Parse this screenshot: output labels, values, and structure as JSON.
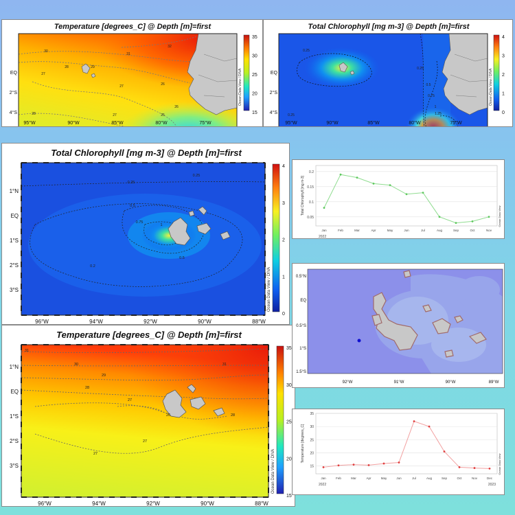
{
  "colors": {
    "chl_line": "#8fdc8f",
    "chl_point": "#5ec85e",
    "temp_line": "#f2a0a0",
    "temp_point": "#e04040",
    "land": "#c8c8c8",
    "land_stroke": "#555555",
    "map_frame": "#222222"
  },
  "chart_data": [
    {
      "type": "heatmap",
      "title": "Temperature [degrees_C] @ Depth [m]=first",
      "x_ticks": [
        "95°W",
        "90°W",
        "85°W",
        "80°W",
        "75°W"
      ],
      "y_ticks": [
        "EQ",
        "2°S",
        "4°S"
      ],
      "colorbar_ticks": [
        "35",
        "30",
        "25",
        "20",
        "15"
      ],
      "contour_labels": [
        "30",
        "31",
        "32",
        "27",
        "28",
        "29",
        "27",
        "26",
        "28",
        "27",
        "25",
        "26"
      ],
      "vertical_label": "Ocean Data View / DIVA"
    },
    {
      "type": "heatmap",
      "title": "Total Chlorophyll [mg m-3] @ Depth [m]=first",
      "x_ticks": [
        "95°W",
        "90°W",
        "85°W",
        "80°W",
        "75°W"
      ],
      "y_ticks": [
        "EQ",
        "2°S",
        "4°S"
      ],
      "colorbar_ticks": [
        "4",
        "3",
        "2",
        "1",
        "0"
      ],
      "contour_labels": [
        "0.25",
        "0.25",
        "0.5",
        "0.75",
        "1",
        "1.25",
        "0.25"
      ],
      "vertical_label": "Ocean Data View / DIVA"
    },
    {
      "type": "heatmap",
      "title": "Total Chlorophyll [mg m-3] @ Depth [m]=first",
      "x_ticks": [
        "96°W",
        "94°W",
        "92°W",
        "90°W",
        "88°W"
      ],
      "y_ticks": [
        "1°N",
        "EQ",
        "1°S",
        "2°S",
        "3°S"
      ],
      "colorbar_ticks": [
        "4",
        "3",
        "2",
        "1",
        "0"
      ],
      "contour_labels": [
        "0.25",
        "0.25",
        "0.5",
        "0.75",
        "1",
        "0.5",
        "0.2"
      ],
      "vertical_label": "Ocean Data View / DIVA"
    },
    {
      "type": "heatmap",
      "title": "Temperature [degrees_C] @ Depth [m]=first",
      "x_ticks": [
        "96°W",
        "94°W",
        "92°W",
        "90°W",
        "88°W"
      ],
      "y_ticks": [
        "1°N",
        "EQ",
        "1°S",
        "2°S",
        "3°S"
      ],
      "colorbar_ticks": [
        "35",
        "30",
        "25",
        "20",
        "15"
      ],
      "contour_labels": [
        "31",
        "30",
        "31",
        "29",
        "28",
        "27",
        "26",
        "28",
        "27",
        "27"
      ],
      "vertical_label": "Ocean Data View / DIVA"
    },
    {
      "type": "line",
      "ylabel": "Total Chlorophyll [mg m-3]",
      "categories": [
        "Jan",
        "Feb",
        "Mar",
        "Apr",
        "May",
        "Jun",
        "Jul",
        "Aug",
        "Sep",
        "Oct",
        "Nov"
      ],
      "values": [
        0.08,
        0.19,
        0.18,
        0.16,
        0.155,
        0.125,
        0.13,
        0.05,
        0.03,
        0.035,
        0.05
      ],
      "ylim": [
        0.02,
        0.22
      ],
      "y_ticks": [
        0.05,
        0.1,
        0.15,
        0.2
      ],
      "y_tick_labels": [
        "0.05",
        "0.1",
        "0.15",
        "0.2"
      ],
      "year_start": "2022",
      "vertical_label": "Ocean Data View"
    },
    {
      "type": "map",
      "x_ticks": [
        "92°W",
        "91°W",
        "90°W",
        "89°W"
      ],
      "y_ticks": [
        "0.5°N",
        "EQ",
        "0.5°S",
        "1°S",
        "1.5°S"
      ]
    },
    {
      "type": "line",
      "ylabel": "Temperature [degrees_C]",
      "categories": [
        "Jan",
        "Feb",
        "Mar",
        "Apr",
        "May",
        "Jun",
        "Jul",
        "Aug",
        "Sep",
        "Oct",
        "Nov",
        "Dec"
      ],
      "values": [
        14.5,
        15.2,
        15.5,
        15.3,
        15.9,
        16.3,
        32.0,
        30.0,
        20.5,
        14.5,
        14.2,
        14.0
      ],
      "ylim": [
        12,
        35
      ],
      "y_ticks": [
        15,
        20,
        25,
        30,
        35
      ],
      "y_tick_labels": [
        "15",
        "20",
        "25",
        "30",
        "35"
      ],
      "year_start": "2022",
      "year_end": "2023",
      "vertical_label": "Ocean Data View"
    }
  ]
}
